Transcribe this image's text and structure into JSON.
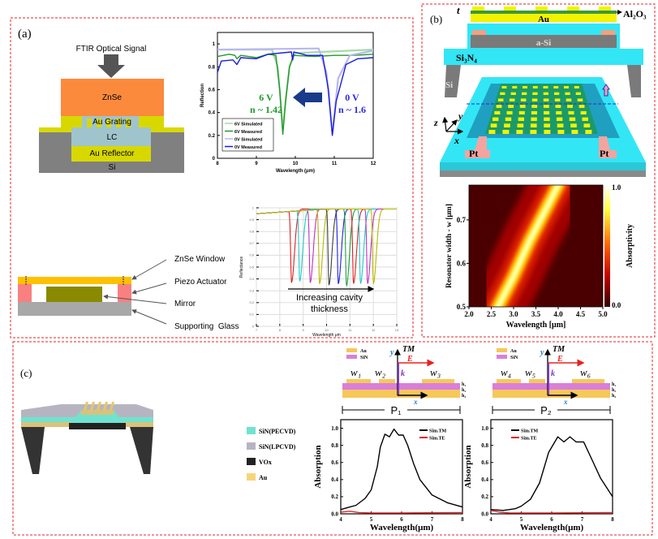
{
  "panels": {
    "a": {
      "label": "(a)",
      "schematic_top": {
        "signal_label": "FTIR Optical Signal",
        "layers": [
          "ZnSe",
          "Au Grating",
          "LC",
          "Au Reflector",
          "Si"
        ]
      },
      "schematic_bottom": {
        "callouts": [
          "ZnSe Window",
          "Piezo Actuator",
          "Mirror",
          "Supporting  Glass"
        ]
      },
      "annotations": {
        "six_v": "6 V",
        "six_v_n": "n ~ 1.42",
        "zero_v": "0 V",
        "zero_v_n": "n ~ 1.6",
        "cavity_text_1": "Increasing cavity",
        "cavity_text_2": "thickness"
      }
    },
    "b": {
      "label": "(b)",
      "cross_section": {
        "t": "t",
        "au": "Au",
        "al2o3": "Al₂O₃",
        "asi": "a-Si",
        "si3n4": "Si₃N₄",
        "si": "Si"
      },
      "device_3d": {
        "pt_left": "Pt",
        "pt_right": "Pt",
        "axis_x": "x",
        "axis_y": "y",
        "axis_z": "z",
        "si": "Si"
      }
    },
    "c": {
      "label": "(c)",
      "legend": [
        "SiN(PECVD)",
        "SiN(LPCVD)",
        "VOx",
        "Au"
      ],
      "legend_colors": [
        "#6fe3cf",
        "#b7b4c2",
        "#222222",
        "#f6d57a"
      ],
      "schematic_1": {
        "legend": [
          "Au",
          "SiN"
        ],
        "widths": [
          "w₁",
          "w₂",
          "w₃"
        ],
        "period": "P₁",
        "heights": [
          "h₁",
          "h₂",
          "h₃"
        ],
        "tm": "TM",
        "e": "E",
        "k": "k",
        "x": "x",
        "y": "y"
      },
      "schematic_2": {
        "legend": [
          "Au",
          "SiN"
        ],
        "widths": [
          "w₄",
          "w₅",
          "w₆"
        ],
        "period": "P₂",
        "heights": [
          "h₁",
          "h₂",
          "h₃"
        ],
        "tm": "TM",
        "e": "E",
        "k": "k",
        "x": "x",
        "y": "y"
      }
    }
  },
  "colors": {
    "frame": "#e8262a",
    "znse": "#fb8a3c",
    "au": "#d8d800",
    "lc": "#9fc4cc",
    "si": "#808080",
    "si3n4": "#33e6f5",
    "pt": "#f4a4a0"
  },
  "chart_data": [
    {
      "id": "a1",
      "type": "line",
      "xlabel": "Wavelength (μm)",
      "ylabel": "Reflection",
      "xlim": [
        8,
        12
      ],
      "ylim": [
        0,
        1.1
      ],
      "xticks": [
        8,
        9,
        10,
        11,
        12
      ],
      "xtick_labels": [
        "8",
        "9",
        "10",
        "11",
        "12"
      ],
      "yticks": [
        0,
        0.2,
        0.4,
        0.6,
        0.8,
        1
      ],
      "ytick_labels": [
        "0",
        "0.2",
        "0.4",
        "0.6",
        "0.8",
        "1"
      ],
      "legend_position": "bottom-left",
      "series": [
        {
          "name": "6V Simulated",
          "color": "#a8d8a8",
          "points": [
            [
              8,
              0.95
            ],
            [
              9.4,
              0.95
            ],
            [
              9.55,
              0.8
            ],
            [
              9.62,
              0.5
            ],
            [
              9.68,
              0.25
            ],
            [
              9.75,
              0.5
            ],
            [
              9.85,
              0.8
            ],
            [
              10,
              0.92
            ],
            [
              12,
              0.95
            ]
          ]
        },
        {
          "name": "6V Measured",
          "color": "#1f9a2a",
          "points": [
            [
              8,
              0.89
            ],
            [
              8.3,
              0.91
            ],
            [
              8.45,
              0.9
            ],
            [
              8.5,
              0.87
            ],
            [
              8.6,
              0.9
            ],
            [
              9,
              0.88
            ],
            [
              9.3,
              0.91
            ],
            [
              9.5,
              0.9
            ],
            [
              9.6,
              0.6
            ],
            [
              9.68,
              0.21
            ],
            [
              9.75,
              0.5
            ],
            [
              9.85,
              0.8
            ],
            [
              9.95,
              0.9
            ],
            [
              10.5,
              0.89
            ],
            [
              11,
              0.9
            ],
            [
              11.5,
              0.9
            ],
            [
              12,
              0.91
            ]
          ]
        },
        {
          "name": "0V Simulated",
          "color": "#b8b8f0",
          "points": [
            [
              8,
              0.95
            ],
            [
              10.6,
              0.96
            ],
            [
              10.8,
              0.75
            ],
            [
              10.95,
              0.22
            ],
            [
              11.1,
              0.7
            ],
            [
              11.4,
              0.9
            ],
            [
              12,
              0.94
            ]
          ]
        },
        {
          "name": "0V Measured",
          "color": "#1a1ae0",
          "points": [
            [
              8,
              0.75
            ],
            [
              8.1,
              0.85
            ],
            [
              8.4,
              0.86
            ],
            [
              8.5,
              0.82
            ],
            [
              8.6,
              0.88
            ],
            [
              9,
              0.87
            ],
            [
              9.3,
              0.91
            ],
            [
              9.9,
              0.93
            ],
            [
              9.93,
              0.86
            ],
            [
              9.96,
              0.93
            ],
            [
              10.3,
              0.9
            ],
            [
              10.7,
              0.9
            ],
            [
              10.85,
              0.6
            ],
            [
              10.95,
              0.2
            ],
            [
              11.05,
              0.5
            ],
            [
              11.3,
              0.82
            ],
            [
              11.6,
              0.87
            ],
            [
              12,
              0.88
            ]
          ]
        }
      ]
    },
    {
      "id": "a2",
      "type": "line",
      "xlabel": "Wavelength μm",
      "ylabel": "Reflectance",
      "xlim": [
        7,
        13
      ],
      "ylim": [
        0,
        1
      ],
      "xticks": [
        7,
        8,
        9,
        10,
        11,
        12,
        13
      ],
      "xtick_labels": [
        "7",
        "8",
        "9",
        "10",
        "11",
        "12",
        "13"
      ],
      "yticks": [
        0,
        0.1,
        0.2,
        0.3,
        0.4,
        0.5,
        0.6,
        0.7,
        0.8,
        0.9,
        1
      ],
      "ytick_labels": [
        "0",
        "0.1",
        "0.2",
        "0.3",
        "0.4",
        "0.5",
        "0.6",
        "0.7",
        "0.8",
        "0.9",
        "1"
      ],
      "grid": true,
      "series": [
        {
          "color": "#e02020",
          "dip_center": 8.5,
          "dip_min": 0.37
        },
        {
          "color": "#20c8c8",
          "dip_center": 8.85,
          "dip_min": 0.38
        },
        {
          "color": "#c030c0",
          "dip_center": 9.3,
          "dip_min": 0.37
        },
        {
          "color": "#b8b800",
          "dip_center": 9.7,
          "dip_min": 0.36
        },
        {
          "color": "#404040",
          "dip_center": 10.1,
          "dip_min": 0.35
        },
        {
          "color": "#2020e0",
          "dip_center": 10.5,
          "dip_min": 0.36
        },
        {
          "color": "#20a040",
          "dip_center": 10.85,
          "dip_min": 0.34
        },
        {
          "color": "#e02020",
          "dip_center": 11.15,
          "dip_min": 0.36
        },
        {
          "color": "#20c8c8",
          "dip_center": 11.45,
          "dip_min": 0.36
        },
        {
          "color": "#c030c0",
          "dip_center": 11.75,
          "dip_min": 0.36
        },
        {
          "color": "#b8b800",
          "dip_center": 12.0,
          "dip_min": 0.36
        }
      ]
    },
    {
      "id": "b1",
      "type": "heatmap",
      "xlabel": "Wavelength [μm]",
      "ylabel": "Resonator width - w [μm]",
      "colorbar_label": "Absorptivity",
      "xlim": [
        2.0,
        5.0
      ],
      "ylim": [
        0.5,
        0.78
      ],
      "clim": [
        0.0,
        1.0
      ],
      "xticks": [
        2.0,
        2.5,
        3.0,
        3.5,
        4.0,
        4.5,
        5.0
      ],
      "xtick_labels": [
        "2.0",
        "2.5",
        "3.0",
        "3.5",
        "4.0",
        "4.5",
        "5.0"
      ],
      "yticks": [
        0.5,
        0.6,
        0.7
      ],
      "ytick_labels": [
        "0.5",
        "0.6",
        "0.7"
      ],
      "ctick_labels": [
        "1.0",
        "0.0"
      ],
      "ridge": [
        [
          2.65,
          0.5
        ],
        [
          3.0,
          0.57
        ],
        [
          3.35,
          0.65
        ],
        [
          3.7,
          0.72
        ],
        [
          4.0,
          0.78
        ]
      ]
    },
    {
      "id": "c1",
      "type": "line",
      "xlabel": "Wavelength(μm)",
      "ylabel": "Absorption",
      "xlim": [
        4,
        8
      ],
      "ylim": [
        0,
        1.1
      ],
      "xticks": [
        4,
        5,
        6,
        7,
        8
      ],
      "xtick_labels": [
        "4",
        "5",
        "6",
        "7",
        "8"
      ],
      "yticks": [
        0,
        0.2,
        0.4,
        0.6,
        0.8,
        1.0
      ],
      "ytick_labels": [
        "0.0",
        "0.2",
        "0.4",
        "0.6",
        "0.8",
        "1.0"
      ],
      "legend_position": "top-right",
      "series": [
        {
          "name": "Sim.TM",
          "color": "#000000",
          "points": [
            [
              4,
              0.05
            ],
            [
              4.2,
              0.07
            ],
            [
              4.5,
              0.1
            ],
            [
              4.8,
              0.18
            ],
            [
              5,
              0.28
            ],
            [
              5.2,
              0.55
            ],
            [
              5.3,
              0.78
            ],
            [
              5.45,
              0.93
            ],
            [
              5.6,
              0.9
            ],
            [
              5.75,
              0.99
            ],
            [
              5.9,
              0.92
            ],
            [
              6.05,
              0.92
            ],
            [
              6.2,
              0.8
            ],
            [
              6.4,
              0.58
            ],
            [
              6.6,
              0.4
            ],
            [
              7,
              0.22
            ],
            [
              7.5,
              0.13
            ],
            [
              8,
              0.08
            ]
          ]
        },
        {
          "name": "Sim.TE",
          "color": "#e82020",
          "points": [
            [
              4,
              0.02
            ],
            [
              4.3,
              0.03
            ],
            [
              4.6,
              0.015
            ],
            [
              5,
              0.01
            ],
            [
              6,
              0.01
            ],
            [
              8,
              0.015
            ]
          ]
        }
      ]
    },
    {
      "id": "c2",
      "type": "line",
      "xlabel": "Wavelength(μm)",
      "ylabel": "Absorption",
      "xlim": [
        4,
        8
      ],
      "ylim": [
        0,
        1.1
      ],
      "xticks": [
        4,
        5,
        6,
        7,
        8
      ],
      "xtick_labels": [
        "4",
        "5",
        "6",
        "7",
        "8"
      ],
      "yticks": [
        0,
        0.2,
        0.4,
        0.6,
        0.8,
        1.0
      ],
      "ytick_labels": [
        "0.0",
        "0.2",
        "0.4",
        "0.6",
        "0.8",
        "1.0"
      ],
      "legend_position": "top-left",
      "series": [
        {
          "name": "Sim.TM",
          "color": "#000000",
          "points": [
            [
              4,
              0.05
            ],
            [
              4.4,
              0.04
            ],
            [
              4.8,
              0.06
            ],
            [
              5,
              0.09
            ],
            [
              5.3,
              0.17
            ],
            [
              5.6,
              0.36
            ],
            [
              5.9,
              0.72
            ],
            [
              6.2,
              0.9
            ],
            [
              6.4,
              0.84
            ],
            [
              6.6,
              0.9
            ],
            [
              6.8,
              0.84
            ],
            [
              7.05,
              0.84
            ],
            [
              7.3,
              0.65
            ],
            [
              7.6,
              0.42
            ],
            [
              8,
              0.2
            ]
          ]
        },
        {
          "name": "Sim.TE",
          "color": "#e82020",
          "points": [
            [
              4,
              0.04
            ],
            [
              4.3,
              0.02
            ],
            [
              4.6,
              0.01
            ],
            [
              5,
              0.01
            ],
            [
              6,
              0.01
            ],
            [
              8,
              0.015
            ]
          ]
        }
      ]
    }
  ]
}
